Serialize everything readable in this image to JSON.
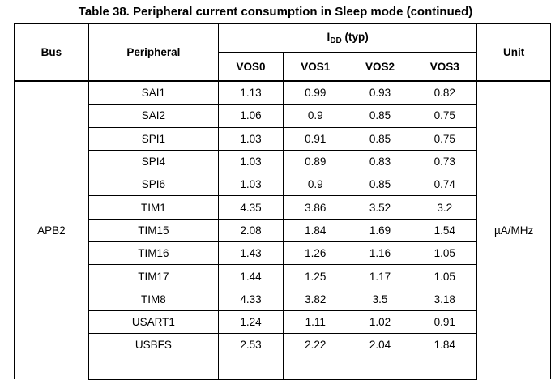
{
  "title": "Table 38. Peripheral current consumption in Sleep mode (continued)",
  "headers": {
    "bus": "Bus",
    "peripheral": "Peripheral",
    "idd_main": "I",
    "idd_sub": "DD",
    "idd_suffix": " (typ)",
    "unit": "Unit",
    "vos": [
      "VOS0",
      "VOS1",
      "VOS2",
      "VOS3"
    ]
  },
  "bus_value": "APB2",
  "unit_value": "µA/MHz",
  "rows": [
    {
      "peripheral": "SAI1",
      "v": [
        "1.13",
        "0.99",
        "0.93",
        "0.82"
      ]
    },
    {
      "peripheral": "SAI2",
      "v": [
        "1.06",
        "0.9",
        "0.85",
        "0.75"
      ]
    },
    {
      "peripheral": "SPI1",
      "v": [
        "1.03",
        "0.91",
        "0.85",
        "0.75"
      ]
    },
    {
      "peripheral": "SPI4",
      "v": [
        "1.03",
        "0.89",
        "0.83",
        "0.73"
      ]
    },
    {
      "peripheral": "SPI6",
      "v": [
        "1.03",
        "0.9",
        "0.85",
        "0.74"
      ]
    },
    {
      "peripheral": "TIM1",
      "v": [
        "4.35",
        "3.86",
        "3.52",
        "3.2"
      ]
    },
    {
      "peripheral": "TIM15",
      "v": [
        "2.08",
        "1.84",
        "1.69",
        "1.54"
      ]
    },
    {
      "peripheral": "TIM16",
      "v": [
        "1.43",
        "1.26",
        "1.16",
        "1.05"
      ]
    },
    {
      "peripheral": "TIM17",
      "v": [
        "1.44",
        "1.25",
        "1.17",
        "1.05"
      ]
    },
    {
      "peripheral": "TIM8",
      "v": [
        "4.33",
        "3.82",
        "3.5",
        "3.18"
      ]
    },
    {
      "peripheral": "USART1",
      "v": [
        "1.24",
        "1.11",
        "1.02",
        "0.91"
      ]
    },
    {
      "peripheral": "USBFS",
      "v": [
        "2.53",
        "2.22",
        "2.04",
        "1.84"
      ]
    }
  ]
}
